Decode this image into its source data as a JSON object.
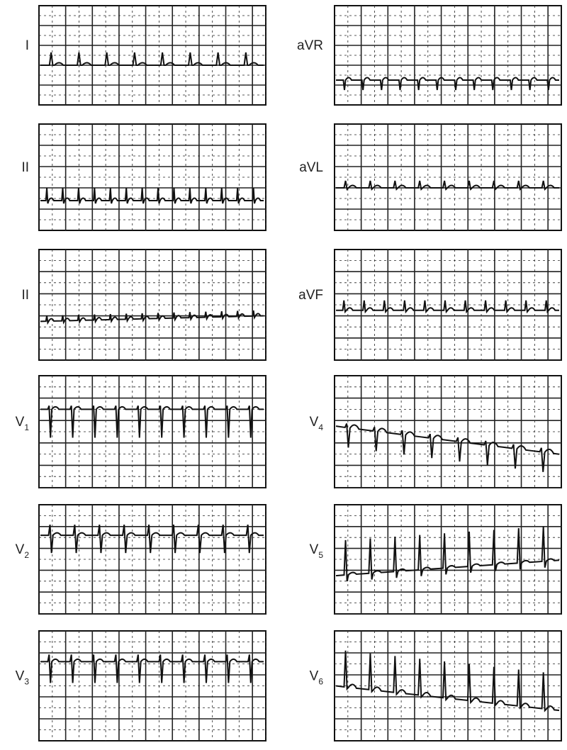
{
  "leads": [
    {
      "label": "I"
    },
    {
      "label": "aVR"
    },
    {
      "label": "II"
    },
    {
      "label": "aVL"
    },
    {
      "label": "II"
    },
    {
      "label": "aVF"
    },
    {
      "label": "V",
      "sub": "1"
    },
    {
      "label": "V",
      "sub": "4"
    },
    {
      "label": "V",
      "sub": "2"
    },
    {
      "label": "V",
      "sub": "5"
    },
    {
      "label": "V",
      "sub": "3"
    },
    {
      "label": "V",
      "sub": "6"
    }
  ]
}
